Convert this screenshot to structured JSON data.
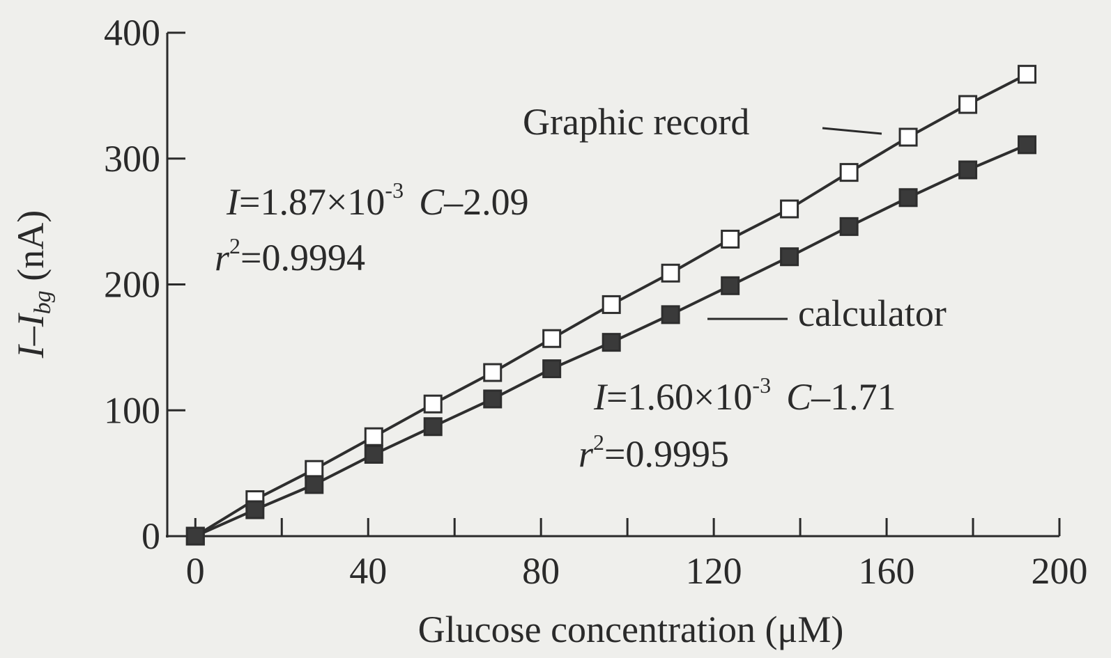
{
  "chart_data": {
    "type": "line",
    "xlabel": "Glucose concentration (μM)",
    "ylabel": {
      "main": "I–I",
      "sub": "bg",
      "unit": " (nA)"
    },
    "x": [
      0,
      13.8,
      27.5,
      41.3,
      55,
      68.8,
      82.5,
      96.3,
      110,
      123.8,
      137.5,
      151.3,
      165,
      178.8,
      192.5
    ],
    "series": [
      {
        "name": "Graphic record",
        "color": "#2e2e2e",
        "marker_fill": "#ffffff",
        "values": [
          0,
          29,
          53,
          79,
          105,
          130,
          157,
          184,
          209,
          236,
          260,
          289,
          317,
          343,
          367
        ]
      },
      {
        "name": "calculator",
        "color": "#2e2e2e",
        "marker_fill": "#3a3a3a",
        "values": [
          0,
          21,
          41,
          65,
          87,
          109,
          133,
          154,
          176,
          199,
          222,
          246,
          269,
          291,
          311
        ]
      }
    ],
    "annotations": [
      {
        "lhs": "I",
        "coef": "=1.87×10",
        "exp": "-3",
        "var": "C",
        "rest": "–2.09",
        "r": "r",
        "r_exp": "2",
        "r_val": "=0.9994"
      },
      {
        "lhs": "I",
        "coef": "=1.60×10",
        "exp": "-3",
        "var": "C",
        "rest": "–1.71",
        "r": "r",
        "r_exp": "2",
        "r_val": "=0.9995"
      }
    ],
    "xlim": [
      -6.5,
      200
    ],
    "xticks": [
      0,
      40,
      80,
      120,
      160,
      200
    ],
    "xminorticks": [
      20,
      60,
      100,
      140,
      180
    ],
    "ylim": [
      0,
      400
    ],
    "yticks": [
      0,
      100,
      200,
      300,
      400
    ]
  }
}
